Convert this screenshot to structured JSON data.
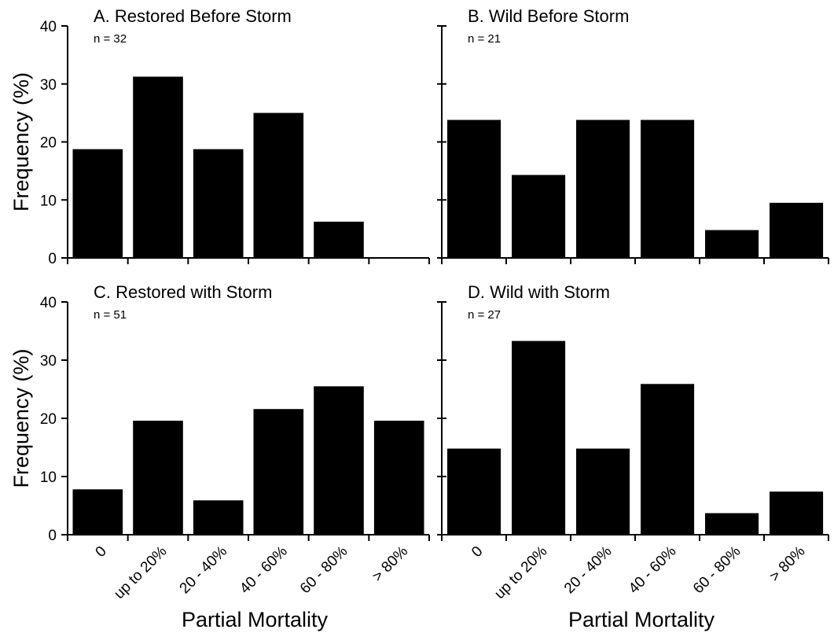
{
  "chart_data": [
    {
      "type": "bar",
      "title": "A. Restored Before Storm",
      "n_label": "n = 32",
      "categories": [
        "0",
        "up to 20%",
        "20 - 40%",
        "40 - 60%",
        "60 - 80%",
        "> 80%"
      ],
      "values": [
        18.75,
        31.25,
        18.75,
        25.0,
        6.25,
        0
      ],
      "ylabel": "Frequency (%)",
      "xlabel": "",
      "ylim": [
        0,
        40
      ],
      "yticks": [
        "0",
        "10",
        "20",
        "30",
        "40"
      ],
      "show_ytick_labels": true,
      "show_xtick_labels": false,
      "color": "#000000"
    },
    {
      "type": "bar",
      "title": "B. Wild Before Storm",
      "n_label": "n = 21",
      "categories": [
        "0",
        "up to 20%",
        "20 - 40%",
        "40 - 60%",
        "60 - 80%",
        "> 80%"
      ],
      "values": [
        23.8,
        14.3,
        23.8,
        23.8,
        4.8,
        9.5
      ],
      "ylabel": "",
      "xlabel": "",
      "ylim": [
        0,
        40
      ],
      "yticks": [
        "0",
        "10",
        "20",
        "30",
        "40"
      ],
      "show_ytick_labels": false,
      "show_xtick_labels": false,
      "color": "#000000"
    },
    {
      "type": "bar",
      "title": "C. Restored with Storm",
      "n_label": "n = 51",
      "categories": [
        "0",
        "up to 20%",
        "20 - 40%",
        "40 - 60%",
        "60 - 80%",
        "> 80%"
      ],
      "values": [
        7.8,
        19.6,
        5.9,
        21.6,
        25.5,
        19.6
      ],
      "ylabel": "Frequency (%)",
      "xlabel": "Partial Mortality",
      "ylim": [
        0,
        40
      ],
      "yticks": [
        "0",
        "10",
        "20",
        "30",
        "40"
      ],
      "show_ytick_labels": true,
      "show_xtick_labels": true,
      "color": "#000000"
    },
    {
      "type": "bar",
      "title": "D. Wild with Storm",
      "n_label": "n = 27",
      "categories": [
        "0",
        "up to 20%",
        "20 - 40%",
        "40 - 60%",
        "60 - 80%",
        "> 80%"
      ],
      "values": [
        14.8,
        33.3,
        14.8,
        25.9,
        3.7,
        7.4
      ],
      "ylabel": "",
      "xlabel": "Partial Mortality",
      "ylim": [
        0,
        40
      ],
      "yticks": [
        "0",
        "10",
        "20",
        "30",
        "40"
      ],
      "show_ytick_labels": false,
      "show_xtick_labels": true,
      "color": "#000000"
    }
  ]
}
